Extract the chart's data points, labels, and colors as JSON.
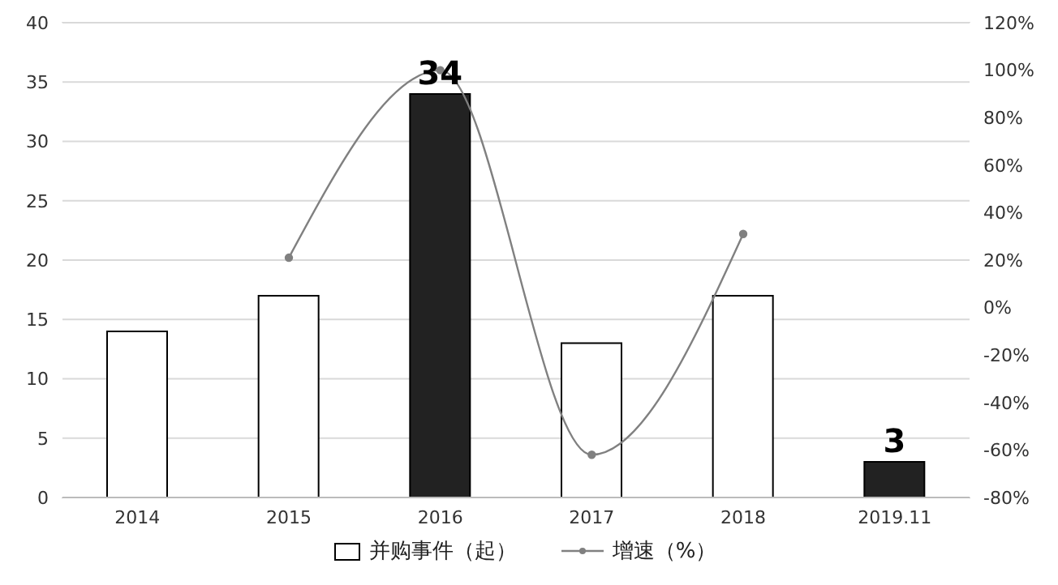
{
  "chart_data": {
    "type": "bar",
    "categories": [
      "2014",
      "2015",
      "2016",
      "2017",
      "2018",
      "2019.11"
    ],
    "series": [
      {
        "name": "并购事件（起）",
        "color": "#ffffff",
        "colors": [
          "#ffffff",
          "#ffffff",
          "#222222",
          "#ffffff",
          "#ffffff",
          "#222222"
        ],
        "values": [
          14,
          17,
          34,
          13,
          17,
          3
        ],
        "value_labels": [
          null,
          null,
          "34",
          null,
          null,
          "3"
        ]
      },
      {
        "name": "增速（%）",
        "type": "line",
        "axis": "y2",
        "color": "#808080",
        "values": [
          null,
          21,
          100,
          -62,
          31,
          null
        ]
      }
    ],
    "ylim": [
      0,
      40
    ],
    "yticks": [
      0,
      5,
      10,
      15,
      20,
      25,
      30,
      35,
      40
    ],
    "y2lim": [
      -80,
      120
    ],
    "y2ticks": [
      {
        "value": -80,
        "label": "-80%"
      },
      {
        "value": -60,
        "label": "-60%"
      },
      {
        "value": -40,
        "label": "-40%"
      },
      {
        "value": -20,
        "label": "-20%"
      },
      {
        "value": 0,
        "label": "0%"
      },
      {
        "value": 20,
        "label": "20%"
      },
      {
        "value": 40,
        "label": "40%"
      },
      {
        "value": 60,
        "label": "60%"
      },
      {
        "value": 80,
        "label": "80%"
      },
      {
        "value": 100,
        "label": "100%"
      },
      {
        "value": 120,
        "label": "120%"
      }
    ],
    "grid": "y",
    "legend": "bottom",
    "marker": "circle"
  }
}
